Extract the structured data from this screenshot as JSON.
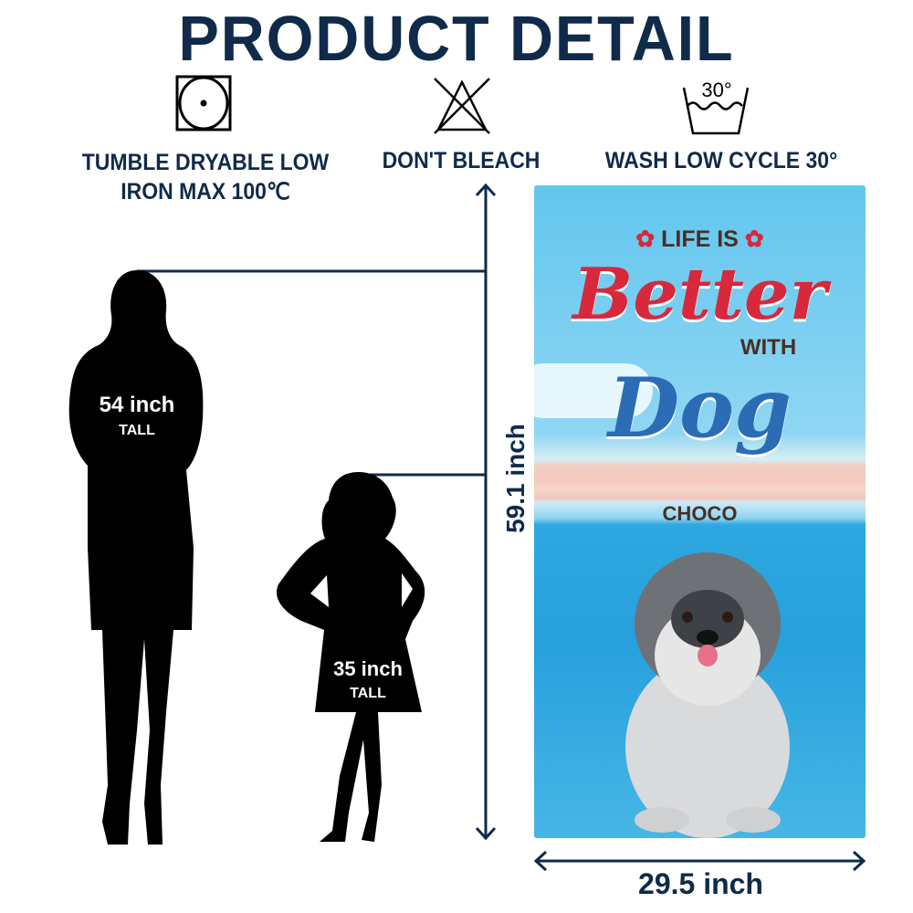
{
  "title": "PRODUCT DETAIL",
  "care": [
    {
      "icon": "tumble-dry-icon",
      "line1": "TUMBLE DRYABLE LOW",
      "line2": "IRON MAX 100℃"
    },
    {
      "icon": "no-bleach-icon",
      "line1": "DON'T BLEACH"
    },
    {
      "icon": "wash-30-icon",
      "line1": "WASH LOW CYCLE 30°",
      "temp": "30°"
    }
  ],
  "adult": {
    "height": "54 inch",
    "label": "TALL"
  },
  "child": {
    "height": "35 inch",
    "label": "TALL"
  },
  "towel": {
    "height": "59.1 inch",
    "width": "29.5 inch",
    "line1": "LIFE IS",
    "line2": "Better",
    "line3": "WITH",
    "line4": "Dog",
    "name": "CHOCO"
  },
  "colors": {
    "navy": "#0f2a4a",
    "red": "#d8283c",
    "blue": "#2b6cb5",
    "brown": "#4a2e24"
  }
}
